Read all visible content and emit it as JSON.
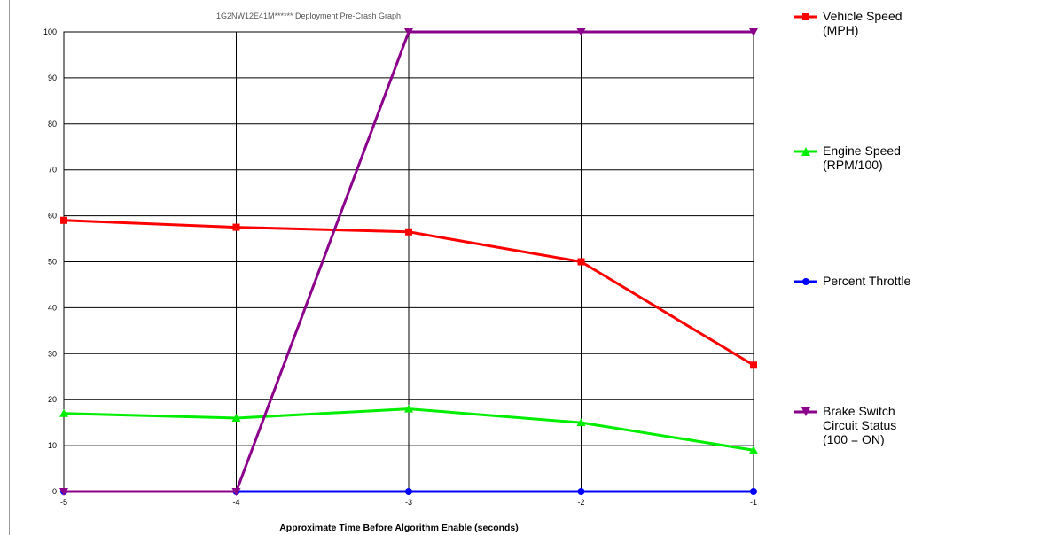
{
  "chart_data": {
    "type": "line",
    "title": "1G2NW12E41M****** Deployment Pre-Crash Graph",
    "xlabel": "Approximate Time Before Algorithm Enable (seconds)",
    "ylabel": "",
    "x": [
      -5,
      -4,
      -3,
      -2,
      -1
    ],
    "x_tick_labels": [
      "-5",
      "-4",
      "-3",
      "-2",
      "-1"
    ],
    "xlim": [
      -5,
      -1
    ],
    "ylim": [
      0,
      100
    ],
    "y_ticks": [
      0,
      10,
      20,
      30,
      40,
      50,
      60,
      70,
      80,
      90,
      100
    ],
    "grid": true,
    "legend_placement": "right",
    "series": [
      {
        "name": "Vehicle Speed\n(MPH)",
        "color": "#ff0000",
        "marker": "square",
        "values": [
          59,
          57.5,
          56.5,
          50,
          27.5
        ]
      },
      {
        "name": "Engine Speed\n(RPM/100)",
        "color": "#00ee00",
        "marker": "triangle",
        "values": [
          17,
          16,
          18,
          15,
          9
        ]
      },
      {
        "name": "Percent Throttle",
        "color": "#0000ff",
        "marker": "circle",
        "values": [
          0,
          0,
          0,
          0,
          0
        ]
      },
      {
        "name": "Brake Switch\nCircuit Status\n(100 = ON)",
        "color": "#8b008b",
        "marker": "triangle-down",
        "values": [
          0,
          0,
          100,
          100,
          100
        ]
      }
    ]
  }
}
